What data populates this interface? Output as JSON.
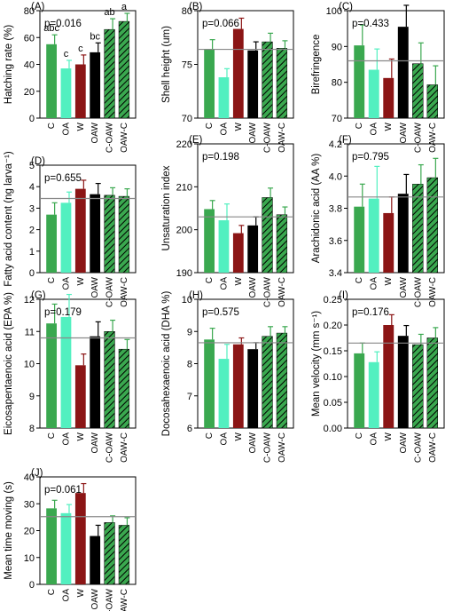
{
  "categories": [
    "C",
    "OA",
    "W",
    "OAW",
    "C-OAW",
    "OAW-C"
  ],
  "bar_colors": [
    "#3aa84f",
    "#52f0c0",
    "#8b1515",
    "#000000",
    "#3aa84f",
    "#3aa84f"
  ],
  "hatched": [
    false,
    false,
    false,
    false,
    true,
    true
  ],
  "chart_data": [
    {
      "type": "bar",
      "panel": "(A)",
      "ylabel": "Hatching rate (%)",
      "ylim": [
        0,
        80
      ],
      "yticks": [
        0,
        20,
        40,
        60,
        80
      ],
      "tick_labels": [
        "0",
        "20",
        "40",
        "60",
        "80"
      ],
      "pvalue": "p=0.016",
      "refline": null,
      "categories": [
        "C",
        "OA",
        "W",
        "OAW",
        "C-OAW",
        "OAW-C"
      ],
      "values": [
        55,
        37,
        40,
        49,
        66,
        72
      ],
      "errors": [
        7,
        6,
        7,
        7,
        8,
        6
      ],
      "letters": [
        "abc",
        "c",
        "c",
        "bc",
        "ab",
        "a"
      ]
    },
    {
      "type": "bar",
      "panel": "(B)",
      "ylabel": "Shell height (um)",
      "ylim": [
        70,
        80
      ],
      "yticks": [
        70,
        75,
        80
      ],
      "tick_labels": [
        "70",
        "75",
        "80"
      ],
      "pvalue": "p=0.066",
      "refline": 76.4,
      "categories": [
        "C",
        "OA",
        "W",
        "OAW",
        "C-OAW",
        "OAW-C"
      ],
      "values": [
        76.4,
        73.8,
        78.3,
        76.3,
        77.1,
        76.5
      ],
      "errors": [
        0.9,
        0.8,
        1.0,
        0.8,
        0.8,
        0.7
      ],
      "letters": []
    },
    {
      "type": "bar",
      "panel": "(C)",
      "ylabel": "Birefringence",
      "ylim": [
        70,
        100
      ],
      "yticks": [
        70,
        80,
        90,
        100
      ],
      "tick_labels": [
        "70",
        "80",
        "90",
        "100"
      ],
      "pvalue": "p=0.433",
      "refline": 86,
      "categories": [
        "C",
        "OA",
        "W",
        "OAW",
        "C-OAW",
        "OAW-C"
      ],
      "values": [
        90.3,
        83.5,
        81.2,
        95.5,
        85.2,
        79.3
      ],
      "errors": [
        5.7,
        5.8,
        5.3,
        6.0,
        5.8,
        5.3
      ],
      "letters": []
    },
    {
      "type": "bar",
      "panel": "(D)",
      "ylabel": "Fatty acid content (ng larva⁻¹)",
      "ylim": [
        0,
        5
      ],
      "yticks": [
        0,
        1,
        2,
        3,
        4,
        5
      ],
      "tick_labels": [
        "0",
        "1",
        "2",
        "3",
        "4",
        "5"
      ],
      "pvalue": "p=0.655",
      "refline": 3.45,
      "categories": [
        "C",
        "OA",
        "W",
        "OAW",
        "C-OAW",
        "OAW-C"
      ],
      "values": [
        2.7,
        3.25,
        3.9,
        3.65,
        3.6,
        3.55
      ],
      "errors": [
        0.55,
        0.5,
        0.4,
        0.5,
        0.35,
        0.35
      ],
      "letters": []
    },
    {
      "type": "bar",
      "panel": "(E)",
      "ylabel": "Unsaturation index",
      "ylim": [
        190,
        220
      ],
      "yticks": [
        190,
        200,
        210,
        220
      ],
      "tick_labels": [
        "190",
        "200",
        "210",
        "220"
      ],
      "pvalue": "p=0.198",
      "refline": 203,
      "categories": [
        "C",
        "OA",
        "W",
        "OAW",
        "C-OAW",
        "OAW-C"
      ],
      "values": [
        204.8,
        202.2,
        199.2,
        201.0,
        207.5,
        203.5
      ],
      "errors": [
        2.0,
        3.8,
        1.8,
        2.0,
        2.2,
        1.8
      ],
      "letters": []
    },
    {
      "type": "bar",
      "panel": "(F)",
      "ylabel": "Arachidonic acid (AA %)",
      "ylim": [
        3.4,
        4.2
      ],
      "yticks": [
        3.4,
        3.6,
        3.8,
        4.0,
        4.2
      ],
      "tick_labels": [
        "3.4",
        "3.6",
        "3.8",
        "4.0",
        "4.2"
      ],
      "pvalue": "p=0.795",
      "refline": 3.87,
      "categories": [
        "C",
        "OA",
        "W",
        "OAW",
        "C-OAW",
        "OAW-C"
      ],
      "values": [
        3.81,
        3.86,
        3.77,
        3.89,
        3.95,
        3.99
      ],
      "errors": [
        0.14,
        0.2,
        0.1,
        0.12,
        0.12,
        0.12
      ],
      "letters": []
    },
    {
      "type": "bar",
      "panel": "(G)",
      "ylabel": "Eicosapentaenoic acid (EPA %)",
      "ylim": [
        8,
        12
      ],
      "yticks": [
        8,
        9,
        10,
        11,
        12
      ],
      "tick_labels": [
        "8",
        "9",
        "10",
        "11",
        "12"
      ],
      "pvalue": "p=0.179",
      "refline": 10.8,
      "categories": [
        "C",
        "OA",
        "W",
        "OAW",
        "C-OAW",
        "OAW-C"
      ],
      "values": [
        11.25,
        11.45,
        9.95,
        10.85,
        11.0,
        10.45
      ],
      "errors": [
        0.6,
        0.7,
        0.35,
        0.45,
        0.35,
        0.3
      ],
      "letters": []
    },
    {
      "type": "bar",
      "panel": "(H)",
      "ylabel": "Docosahexaenoic acid (DHA %)",
      "ylim": [
        6,
        10
      ],
      "yticks": [
        6,
        7,
        8,
        9,
        10
      ],
      "tick_labels": [
        "6",
        "7",
        "8",
        "9",
        "10"
      ],
      "pvalue": "p=0.575",
      "refline": 8.65,
      "categories": [
        "C",
        "OA",
        "W",
        "OAW",
        "C-OAW",
        "OAW-C"
      ],
      "values": [
        8.75,
        8.15,
        8.6,
        8.45,
        8.85,
        8.95
      ],
      "errors": [
        0.35,
        0.45,
        0.2,
        0.2,
        0.3,
        0.2
      ],
      "letters": []
    },
    {
      "type": "bar",
      "panel": "(I)",
      "ylabel": "Mean velocity (mm s⁻¹)",
      "ylim": [
        0.0,
        0.25
      ],
      "yticks": [
        0.0,
        0.05,
        0.1,
        0.15,
        0.2,
        0.25
      ],
      "tick_labels": [
        "0.00",
        "0.05",
        "0.10",
        "0.15",
        "0.20",
        "0.25"
      ],
      "pvalue": "p=0.176",
      "refline": 0.165,
      "categories": [
        "C",
        "OA",
        "W",
        "OAW",
        "C-OAW",
        "OAW-C"
      ],
      "values": [
        0.145,
        0.128,
        0.2,
        0.179,
        0.162,
        0.175
      ],
      "errors": [
        0.02,
        0.02,
        0.02,
        0.02,
        0.02,
        0.02
      ],
      "letters": []
    },
    {
      "type": "bar",
      "panel": "(J)",
      "ylabel": "Mean time moving (s)",
      "ylim": [
        0,
        40
      ],
      "yticks": [
        0,
        10,
        20,
        30,
        40
      ],
      "tick_labels": [
        "0",
        "10",
        "20",
        "30",
        "40"
      ],
      "pvalue": "p=0.061",
      "refline": 25.2,
      "categories": [
        "C",
        "OA",
        "W",
        "OAW",
        "C-OAW",
        "OAW-C"
      ],
      "values": [
        28.3,
        26.5,
        34.0,
        18.0,
        23.0,
        22.0
      ],
      "errors": [
        3.0,
        3.2,
        3.5,
        4.0,
        2.5,
        2.8
      ],
      "letters": []
    }
  ]
}
